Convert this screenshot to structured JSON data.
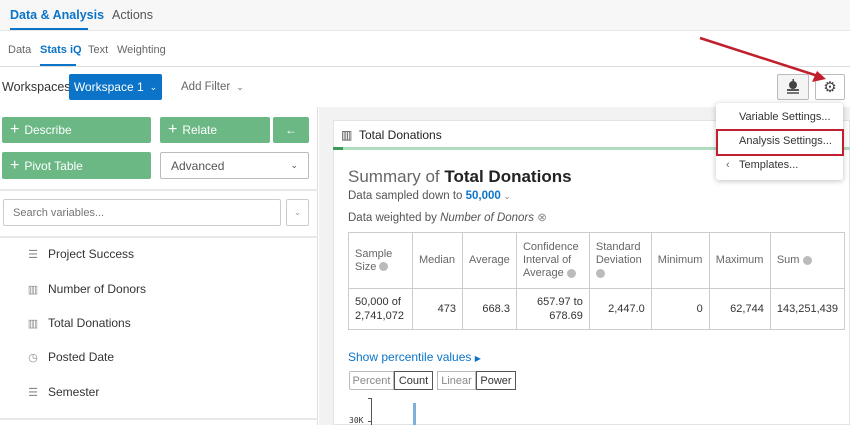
{
  "topnav": {
    "tabs": [
      {
        "label": "Data & Analysis",
        "active": true
      },
      {
        "label": "Actions"
      }
    ]
  },
  "subnav": {
    "tabs": [
      {
        "label": "Data"
      },
      {
        "label": "Stats iQ",
        "active": true
      },
      {
        "label": "Text"
      },
      {
        "label": "Weighting"
      }
    ]
  },
  "toolbar": {
    "workspaces_label": "Workspaces:",
    "workspace": "Workspace 1",
    "add_filter": "Add Filter"
  },
  "actions": {
    "describe": "Describe",
    "relate": "Relate",
    "pivot_table": "Pivot Table",
    "advanced": "Advanced"
  },
  "search": {
    "placeholder": "Search variables..."
  },
  "variables": [
    {
      "label": "Project Success",
      "icon": "list-icon"
    },
    {
      "label": "Number of Donors",
      "icon": "bar-chart-icon"
    },
    {
      "label": "Total Donations",
      "icon": "bar-chart-icon"
    },
    {
      "label": "Posted Date",
      "icon": "clock-icon"
    },
    {
      "label": "Semester",
      "icon": "list-icon"
    }
  ],
  "card": {
    "title": "Total Donations",
    "summary_prefix": "Summary of ",
    "summary_var": "Total Donations",
    "sampled_prefix": "Data sampled down to ",
    "sampled_value": "50,000",
    "weighted_prefix": "Data weighted by ",
    "weighted_var": "Number of Donors",
    "table": {
      "headers": [
        "Sample Size",
        "Median",
        "Average",
        "Confidence Interval of Average",
        "Standard Deviation",
        "Minimum",
        "Maximum",
        "Sum"
      ],
      "values": [
        "50,000 of 2,741,072",
        "473",
        "668.3",
        "657.97 to 678.69",
        "2,447.0",
        "0",
        "62,744",
        "143,251,439"
      ]
    },
    "percentile_link": "Show percentile values",
    "toggles": {
      "percent": "Percent",
      "count": "Count",
      "linear": "Linear",
      "power": "Power"
    },
    "axis_tick": "30K"
  },
  "menu": {
    "items": [
      "Variable Settings...",
      "Analysis Settings...",
      "Templates..."
    ]
  },
  "colors": {
    "accent": "#0b74c8",
    "green": "#6bb884",
    "highlight": "#c0202d"
  }
}
